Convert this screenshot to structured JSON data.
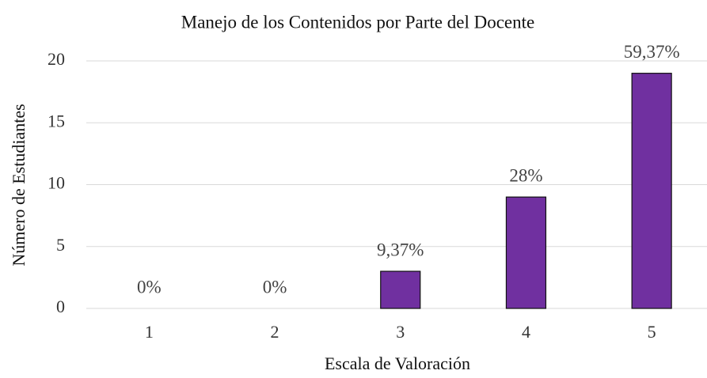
{
  "chart_data": {
    "type": "bar",
    "title": "Manejo de los Contenidos por Parte del Docente",
    "x_label": "Escala de Valoración",
    "y_label": "Número de Estudiantes",
    "categories": [
      "1",
      "2",
      "3",
      "4",
      "5"
    ],
    "values": [
      0,
      0,
      3,
      9,
      19
    ],
    "annotations": [
      "0%",
      "0%",
      "9,37%",
      "28%",
      "59,37%"
    ],
    "color": "#7030a0",
    "ylim": [
      0,
      20
    ],
    "yticks": [
      0,
      5,
      10,
      15,
      20
    ],
    "grid": true
  }
}
